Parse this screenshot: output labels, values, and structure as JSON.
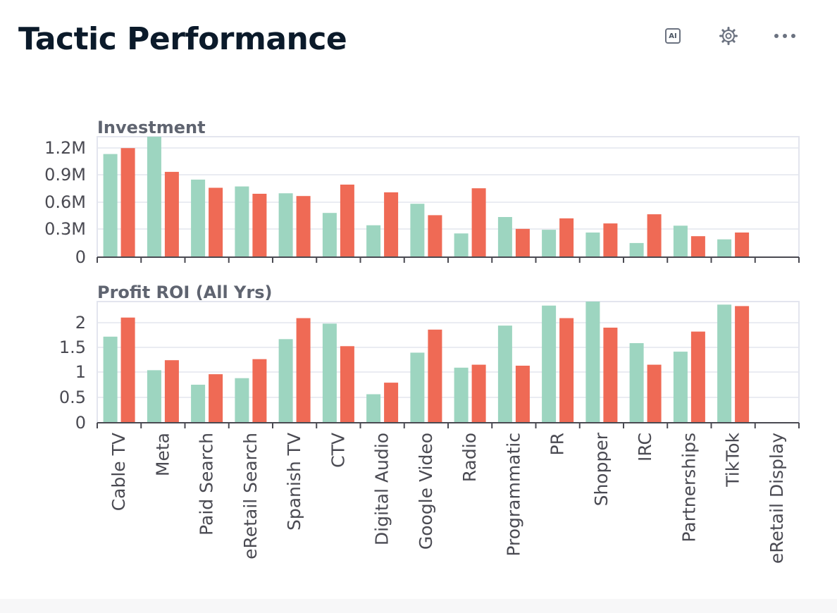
{
  "header": {
    "title": "Tactic Performance"
  },
  "toolbar": {
    "ai_label": "AI",
    "ai_icon": "ai-icon",
    "settings_icon": "gear-icon",
    "more_icon": "more-dots-icon"
  },
  "colors": {
    "series_a": "#9dd5c0",
    "series_b": "#ef6a55",
    "grid": "#e3e5ee",
    "axis": "#4a4a52"
  },
  "chart_data": [
    {
      "type": "bar",
      "title": "Investment",
      "categories": [
        "Cable TV",
        "Meta",
        "Paid Search",
        "eRetail Search",
        "Spanish TV",
        "CTV",
        "Digital Audio",
        "Google Video",
        "Radio",
        "Programmatic",
        "PR",
        "Shopper",
        "IRC",
        "Partnerships",
        "TikTok",
        "eRetail Display"
      ],
      "series": [
        {
          "values": [
            1130000,
            1320000,
            850000,
            775000,
            700000,
            485000,
            350000,
            585000,
            260000,
            440000,
            300000,
            270000,
            155000,
            345000,
            195000,
            0
          ]
        },
        {
          "values": [
            1195000,
            935000,
            760000,
            695000,
            670000,
            795000,
            710000,
            460000,
            755000,
            310000,
            425000,
            370000,
            470000,
            230000,
            270000,
            0
          ]
        }
      ],
      "yticks": [
        "0",
        "0.3M",
        "0.6M",
        "0.9M",
        "1.2M"
      ],
      "ylim": [
        0,
        1320000
      ],
      "grid": true
    },
    {
      "type": "bar",
      "title": "Profit ROI (All Yrs)",
      "categories": [
        "Cable TV",
        "Meta",
        "Paid Search",
        "eRetail Search",
        "Spanish TV",
        "CTV",
        "Digital Audio",
        "Google Video",
        "Radio",
        "Programmatic",
        "PR",
        "Shopper",
        "IRC",
        "Partnerships",
        "TikTok",
        "eRetail Display"
      ],
      "series": [
        {
          "values": [
            1.72,
            1.05,
            0.76,
            0.89,
            1.67,
            1.98,
            0.57,
            1.4,
            1.1,
            1.94,
            2.34,
            2.42,
            1.59,
            1.42,
            2.36,
            0
          ]
        },
        {
          "values": [
            2.1,
            1.25,
            0.97,
            1.27,
            2.09,
            1.53,
            0.8,
            1.86,
            1.16,
            1.14,
            2.09,
            1.9,
            1.16,
            1.82,
            2.33,
            0
          ]
        }
      ],
      "yticks": [
        "0",
        "0.5",
        "1",
        "1.5",
        "2"
      ],
      "ylim": [
        0,
        2.42
      ],
      "grid": true
    }
  ]
}
